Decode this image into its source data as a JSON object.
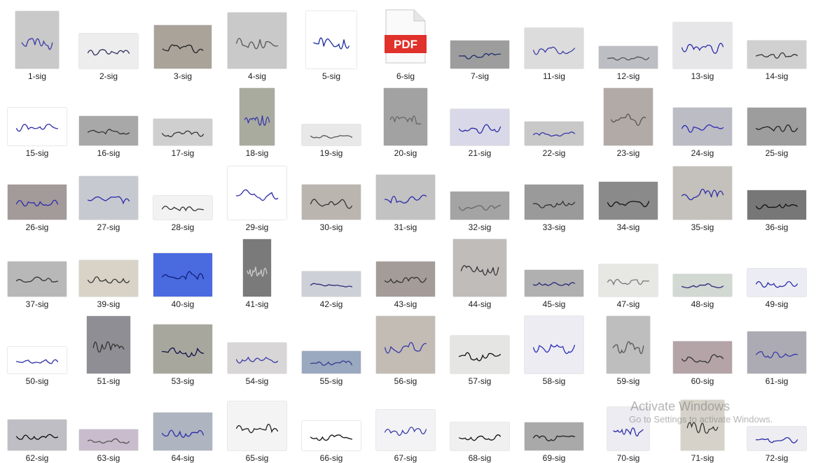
{
  "files": [
    {
      "name": "1-sig",
      "sig": "Santosh",
      "tone": "#c9c9c9",
      "w": 62,
      "h": 82,
      "ink": "#3a3aa8"
    },
    {
      "name": "2-sig",
      "sig": "Rony",
      "tone": "#ededed",
      "w": 84,
      "h": 50,
      "ink": "#2a2a5a"
    },
    {
      "name": "3-sig",
      "sig": "Kj",
      "tone": "#a9a39a",
      "w": 82,
      "h": 62,
      "ink": "#222"
    },
    {
      "name": "4-sig",
      "sig": "Anamika",
      "tone": "#c9c9c9",
      "w": 84,
      "h": 80,
      "ink": "#555"
    },
    {
      "name": "5-sig",
      "sig": "Monty",
      "tone": "#ffffff",
      "w": 72,
      "h": 82,
      "ink": "#1a2aa0"
    },
    {
      "name": "6-sig",
      "type": "pdf"
    },
    {
      "name": "7-sig",
      "sig": "Ah",
      "tone": "#9d9d9d",
      "w": 84,
      "h": 40,
      "ink": "#1c2a6a"
    },
    {
      "name": "11-sig",
      "sig": "Ayush",
      "tone": "#dcdcdc",
      "w": 84,
      "h": 58,
      "ink": "#3a3aa8"
    },
    {
      "name": "12-sig",
      "sig": "Abhay Kaphesh",
      "tone": "#bdbdc4",
      "w": 84,
      "h": 32,
      "ink": "#555"
    },
    {
      "name": "13-sig",
      "sig": "Ram AIZ",
      "tone": "#e6e6e9",
      "w": 84,
      "h": 66,
      "ink": "#2a2aa8"
    },
    {
      "name": "14-sig",
      "sig": "Adarsh",
      "tone": "#d0d0d0",
      "w": 84,
      "h": 40,
      "ink": "#333"
    },
    {
      "name": "15-sig",
      "sig": "Adibya",
      "tone": "#ffffff",
      "w": 84,
      "h": 54,
      "ink": "#2a2aa8"
    },
    {
      "name": "16-sig",
      "sig": "Abhishek",
      "tone": "#a8a8a8",
      "w": 84,
      "h": 42,
      "ink": "#333"
    },
    {
      "name": "17-sig",
      "sig": "Aayush",
      "tone": "#cfcfcf",
      "w": 84,
      "h": 38,
      "ink": "#333"
    },
    {
      "name": "18-sig",
      "sig": "Anshu",
      "tone": "#a9ab9f",
      "w": 50,
      "h": 82,
      "ink": "#3a3aa8"
    },
    {
      "name": "19-sig",
      "sig": "Aman Sharma",
      "tone": "#e8e8e8",
      "w": 84,
      "h": 30,
      "ink": "#555"
    },
    {
      "name": "20-sig",
      "sig": "Amar",
      "tone": "#a2a2a2",
      "w": 62,
      "h": 82,
      "ink": "#666"
    },
    {
      "name": "21-sig",
      "sig": "Amit",
      "tone": "#d8d8e8",
      "w": 84,
      "h": 52,
      "ink": "#2a2aa8"
    },
    {
      "name": "22-sig",
      "sig": "Anamika",
      "tone": "#c8c8c8",
      "w": 84,
      "h": 34,
      "ink": "#3a3aa8"
    },
    {
      "name": "23-sig",
      "sig": "Anish",
      "tone": "#b2aaa6",
      "w": 70,
      "h": 82,
      "ink": "#555"
    },
    {
      "name": "24-sig",
      "sig": "Anil",
      "tone": "#bcbcc4",
      "w": 84,
      "h": 54,
      "ink": "#2a2ab8"
    },
    {
      "name": "25-sig",
      "sig": "Atharva",
      "tone": "#9d9d9d",
      "w": 84,
      "h": 54,
      "ink": "#222"
    },
    {
      "name": "26-sig",
      "sig": "Bhawna",
      "tone": "#a39a9a",
      "w": 84,
      "h": 50,
      "ink": "#2a2aa8"
    },
    {
      "name": "27-sig",
      "sig": "Ashok Kumar",
      "tone": "#c7c9d0",
      "w": 84,
      "h": 62,
      "ink": "#2a2aa8"
    },
    {
      "name": "28-sig",
      "sig": "Ashish",
      "tone": "#f2f2f2",
      "w": 84,
      "h": 34,
      "ink": "#333"
    },
    {
      "name": "29-sig",
      "sig": "Ashutosh",
      "tone": "#ffffff",
      "w": 84,
      "h": 76,
      "ink": "#2a2aa8"
    },
    {
      "name": "30-sig",
      "sig": "Avi Chary",
      "tone": "#bbb5b0",
      "w": 84,
      "h": 50,
      "ink": "#333"
    },
    {
      "name": "31-sig",
      "sig": "Avneet",
      "tone": "#c2c2c2",
      "w": 84,
      "h": 64,
      "ink": "#2a2aa8"
    },
    {
      "name": "32-sig",
      "sig": "Ayesh",
      "tone": "#a4a4a4",
      "w": 84,
      "h": 40,
      "ink": "#666"
    },
    {
      "name": "33-sig",
      "sig": "Ayush",
      "tone": "#9a9a9a",
      "w": 84,
      "h": 50,
      "ink": "#333"
    },
    {
      "name": "34-sig",
      "sig": "Ayush",
      "tone": "#8a8a8a",
      "w": 84,
      "h": 54,
      "ink": "#111"
    },
    {
      "name": "35-sig",
      "sig": "Bhivan",
      "tone": "#c4c0bb",
      "w": 84,
      "h": 76,
      "ink": "#2a2aa8"
    },
    {
      "name": "36-sig",
      "sig": "Bhavya",
      "tone": "#777777",
      "w": 84,
      "h": 42,
      "ink": "#111"
    },
    {
      "name": "37-sig",
      "sig": "Binay",
      "tone": "#b8b8b8",
      "w": 84,
      "h": 50,
      "ink": "#333"
    },
    {
      "name": "39-sig",
      "sig": "Gagan",
      "tone": "#d9d3c7",
      "w": 84,
      "h": 52,
      "ink": "#333"
    },
    {
      "name": "40-sig",
      "sig": "Ghanshyam",
      "tone": "#4a6ae0",
      "w": 84,
      "h": 62,
      "ink": "#10207a"
    },
    {
      "name": "41-sig",
      "sig": "Harsh",
      "tone": "#7a7a7a",
      "w": 40,
      "h": 82,
      "ink": "#ccc"
    },
    {
      "name": "42-sig",
      "sig": "Himanshu Naik",
      "tone": "#cdd0d6",
      "w": 84,
      "h": 36,
      "ink": "#2a2a7a"
    },
    {
      "name": "43-sig",
      "sig": "Harshal",
      "tone": "#a49c98",
      "w": 84,
      "h": 50,
      "ink": "#333"
    },
    {
      "name": "44-sig",
      "sig": "Isha",
      "tone": "#bfbcba",
      "w": 76,
      "h": 82,
      "ink": "#333"
    },
    {
      "name": "45-sig",
      "sig": "Kajal",
      "tone": "#b0b0b0",
      "w": 84,
      "h": 38,
      "ink": "#2a2a7a"
    },
    {
      "name": "47-sig",
      "sig": "Neeraj Kumar",
      "tone": "#e7e7e3",
      "w": 84,
      "h": 46,
      "ink": "#777"
    },
    {
      "name": "48-sig",
      "sig": "Nidhi Verma",
      "tone": "#d2d8d2",
      "w": 84,
      "h": 32,
      "ink": "#2a2a7a"
    },
    {
      "name": "49-sig",
      "sig": "Nikhil Kumar",
      "tone": "#ececf4",
      "w": 84,
      "h": 40,
      "ink": "#2a2aa8"
    },
    {
      "name": "50-sig",
      "sig": "Nharmy",
      "tone": "#ffffff",
      "w": 84,
      "h": 38,
      "ink": "#2a2aa8"
    },
    {
      "name": "51-sig",
      "sig": "Manish",
      "tone": "#8e8e94",
      "w": 62,
      "h": 82,
      "ink": "#333"
    },
    {
      "name": "53-sig",
      "sig": "Pallvi",
      "tone": "#a7a79e",
      "w": 84,
      "h": 70,
      "ink": "#10104a"
    },
    {
      "name": "54-sig",
      "sig": "Pawan Sharma",
      "tone": "#d8d6d6",
      "w": 84,
      "h": 44,
      "ink": "#3a3aa8"
    },
    {
      "name": "55-sig",
      "sig": "PAVAN KUMAR",
      "tone": "#9aa8c0",
      "w": 84,
      "h": 32,
      "ink": "#3a3a8a"
    },
    {
      "name": "56-sig",
      "sig": "Priyanka",
      "tone": "#c2bcb5",
      "w": 84,
      "h": 82,
      "ink": "#3a3aa8"
    },
    {
      "name": "57-sig",
      "sig": "Thakur",
      "tone": "#e5e5e3",
      "w": 84,
      "h": 54,
      "ink": "#111"
    },
    {
      "name": "58-sig",
      "sig": "Rahul",
      "tone": "#ececf2",
      "w": 84,
      "h": 82,
      "ink": "#2a2ab8"
    },
    {
      "name": "59-sig",
      "sig": "Rajkumar",
      "tone": "#bebebe",
      "w": 62,
      "h": 82,
      "ink": "#555"
    },
    {
      "name": "60-sig",
      "sig": "Rajkishor",
      "tone": "#b4a4a8",
      "w": 84,
      "h": 46,
      "ink": "#333"
    },
    {
      "name": "61-sig",
      "sig": "Rishy",
      "tone": "#acabb4",
      "w": 84,
      "h": 60,
      "ink": "#3a3aa8"
    },
    {
      "name": "62-sig",
      "sig": "Sahil Kumar",
      "tone": "#bebec4",
      "w": 84,
      "h": 44,
      "ink": "#111"
    },
    {
      "name": "63-sig",
      "sig": "Sachit Kumar",
      "tone": "#c9bccc",
      "w": 84,
      "h": 30,
      "ink": "#555"
    },
    {
      "name": "64-sig",
      "sig": "Shivani",
      "tone": "#aeb4c0",
      "w": 84,
      "h": 54,
      "ink": "#2a2aa8"
    },
    {
      "name": "65-sig",
      "sig": "Shorya",
      "tone": "#f4f4f4",
      "w": 84,
      "h": 70,
      "ink": "#222"
    },
    {
      "name": "66-sig",
      "sig": "Suraj",
      "tone": "#ffffff",
      "w": 84,
      "h": 42,
      "ink": "#111"
    },
    {
      "name": "67-sig",
      "sig": "Sudhir",
      "tone": "#f3f3f6",
      "w": 84,
      "h": 58,
      "ink": "#3a3aa8"
    },
    {
      "name": "68-sig",
      "sig": "Gautam",
      "tone": "#f0f0f0",
      "w": 84,
      "h": 40,
      "ink": "#111"
    },
    {
      "name": "69-sig",
      "sig": "Tharmesh",
      "tone": "#a9a9a9",
      "w": 84,
      "h": 40,
      "ink": "#222"
    },
    {
      "name": "70-sig",
      "sig": "Vinod",
      "tone": "#ececf2",
      "w": 60,
      "h": 62,
      "ink": "#2a2aa8"
    },
    {
      "name": "71-sig",
      "sig": "Vikas",
      "tone": "#d6d2ca",
      "w": 62,
      "h": 72,
      "ink": "#333"
    },
    {
      "name": "72-sig",
      "sig": "Vaidya",
      "tone": "#ededf2",
      "w": 84,
      "h": 34,
      "ink": "#2a2aa8"
    }
  ],
  "pdf_icon_text": "PDF",
  "watermark": {
    "title": "Activate Windows",
    "subtitle": "Go to Settings to activate Windows."
  }
}
